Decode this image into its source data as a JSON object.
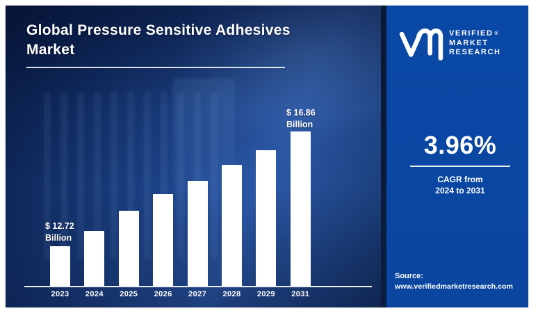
{
  "left_panel": {
    "title_line1": "Global Pressure Sensitive Adhesives",
    "title_line2": "Market",
    "annotations": {
      "first": {
        "line1": "$ 12.72",
        "line2": "Billion"
      },
      "last": {
        "line1": "$ 16.86",
        "line2": "Billion"
      }
    }
  },
  "right_panel": {
    "logo": {
      "monogram": "vm-monogram",
      "wordmark_line1": "VERIFIED",
      "wordmark_line2": "MARKET",
      "wordmark_line3": "RESEARCH",
      "registered_mark": "®"
    },
    "cagr_value": "3.96%",
    "cagr_caption_line1": "CAGR from",
    "cagr_caption_line2": "2024 to 2031",
    "source_label": "Source:",
    "source_url": "www.verifiedmarketresearch.com"
  },
  "chart_data": {
    "type": "bar",
    "title": "Global Pressure Sensitive Adhesives Market",
    "unit": "USD Billion",
    "categories": [
      "2023",
      "2024",
      "2025",
      "2026",
      "2027",
      "2028",
      "2029",
      "2031"
    ],
    "values": [
      12.72,
      13.27,
      14.0,
      14.6,
      15.08,
      15.66,
      16.18,
      16.86
    ],
    "labeled_points": [
      {
        "category": "2023",
        "label": "$ 12.72 Billion"
      },
      {
        "category": "2031",
        "label": "$ 16.86 Billion"
      }
    ],
    "bar_color": "#ffffff",
    "ylim_display": [
      12.72,
      16.86
    ],
    "gridlines": false,
    "value_axis_visible": false,
    "legend": false
  },
  "colors": {
    "left_panel_navy": "#12306a",
    "right_panel_blue": "#0a47a3",
    "bar_white": "#ffffff",
    "text_white": "#ffffff",
    "separator_dark": "#0a1734"
  }
}
